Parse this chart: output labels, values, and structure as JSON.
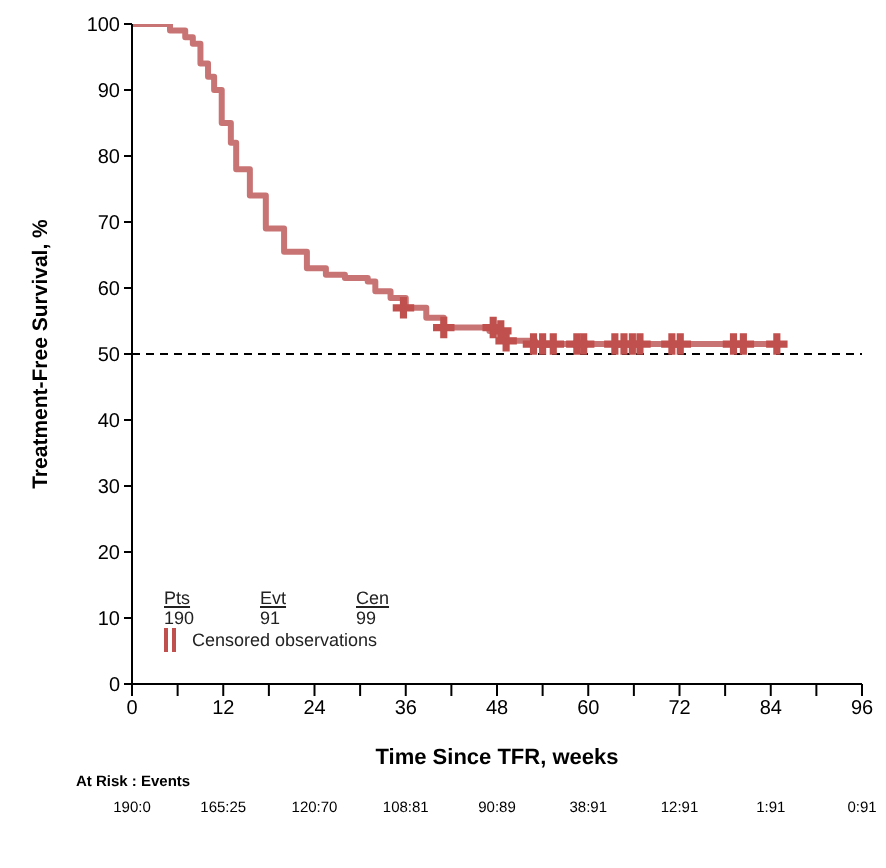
{
  "chart_data": {
    "type": "step",
    "xlabel": "Time Since TFR, weeks",
    "ylabel": "Treatment-Free Survival, %",
    "xlim": [
      0,
      96
    ],
    "xticks": [
      0,
      {
        "value": 6,
        "label": null
      },
      12,
      {
        "value": 18,
        "label": null
      },
      24,
      {
        "value": 30,
        "label": null
      },
      36,
      {
        "value": 42,
        "label": null
      },
      48,
      {
        "value": 54,
        "label": null
      },
      60,
      {
        "value": 66,
        "label": null
      },
      72,
      {
        "value": 78,
        "label": null
      },
      84,
      {
        "value": 90,
        "label": null
      },
      96
    ],
    "ylim": [
      0,
      100
    ],
    "yticks": [
      0,
      10,
      20,
      30,
      40,
      50,
      60,
      70,
      80,
      90,
      100
    ],
    "series": [
      {
        "color": "#c97474",
        "x": [
          0,
          5,
          7,
          8,
          9,
          10,
          10.8,
          11.8,
          13,
          13.7,
          15.5,
          17.6,
          20,
          23,
          25.5,
          28,
          31,
          32,
          34,
          36,
          38.7,
          41,
          47,
          49,
          53,
          84.8
        ],
        "values": [
          100,
          99,
          98,
          97,
          94,
          92,
          90,
          85,
          82,
          78,
          74,
          69,
          65.5,
          63,
          62,
          61.5,
          61,
          59.5,
          58.5,
          57,
          55.5,
          54,
          53.5,
          52,
          51.5,
          51.5
        ]
      },
      {
        "type": "scatter",
        "name": "Censored observations",
        "color": "#c0504d",
        "marker": "cross",
        "x": [
          35.7,
          41,
          47.5,
          48.5,
          49.2,
          52.8,
          54,
          55.4,
          58.5,
          59.4,
          63.5,
          64.7,
          65.8,
          66.8,
          71,
          72.1,
          79.1,
          80.4,
          84.8
        ],
        "values": [
          57,
          54,
          54,
          53.5,
          52,
          51.5,
          51.5,
          51.5,
          51.5,
          51.5,
          51.5,
          51.5,
          51.5,
          51.5,
          51.5,
          51.5,
          51.5,
          51.5,
          51.5
        ]
      }
    ],
    "ref_lines": [
      {
        "axis": "y",
        "value": 50,
        "line_style": "dashed",
        "color": "#000000"
      }
    ],
    "legend": "bottom left",
    "annotations": [
      "Pts",
      "Evt",
      "Cen",
      "190",
      "91",
      "99",
      "At Risk : Events",
      "190:0",
      "165:25",
      "120:70",
      "108:81",
      "90:89",
      "38:91",
      "12:91",
      "1:91",
      "0:91"
    ]
  }
}
